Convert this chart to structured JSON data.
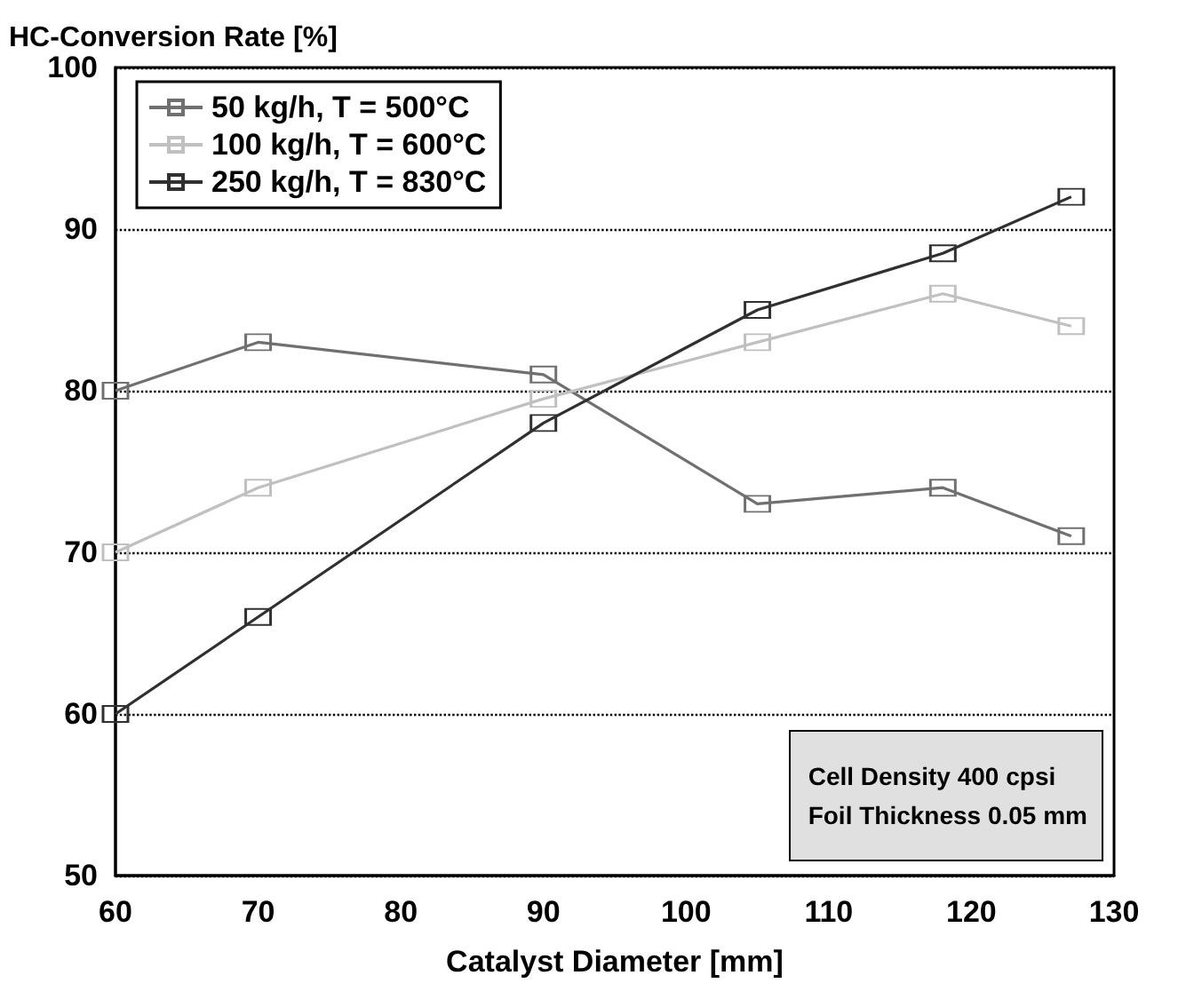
{
  "chart_data": {
    "type": "line",
    "ylabel": "HC-Conversion Rate [%]",
    "xlabel": "Catalyst Diameter [mm]",
    "x": [
      60,
      70,
      90,
      105,
      118,
      127
    ],
    "series": [
      {
        "name": "50 kg/h, T = 500°C",
        "color": "#707070",
        "values": [
          80,
          83,
          81,
          73,
          74,
          71
        ]
      },
      {
        "name": "100 kg/h, T = 600°C",
        "color": "#c0c0c0",
        "values": [
          70,
          74,
          79.5,
          83,
          86,
          84
        ]
      },
      {
        "name": "250 kg/h, T = 830°C",
        "color": "#303030",
        "values": [
          60,
          66,
          78,
          85,
          88.5,
          92
        ]
      }
    ],
    "xlim": [
      60,
      130
    ],
    "xticks": [
      60,
      70,
      80,
      90,
      100,
      110,
      120,
      130
    ],
    "ylim": [
      50,
      100
    ],
    "yticks": [
      50,
      60,
      70,
      80,
      90,
      100
    ],
    "grid": "y",
    "legend": "top left",
    "marker": "square",
    "line_style": "solid",
    "annotations": [
      "Cell Density 400 cpsi\nFoil Thickness 0.05 mm"
    ]
  }
}
